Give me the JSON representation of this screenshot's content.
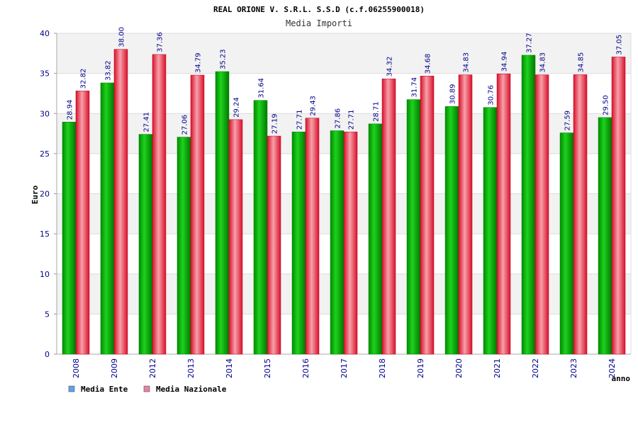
{
  "chart_data": {
    "type": "bar",
    "title": "REAL ORIONE V. S.R.L. S.S.D (c.f.06255900018)",
    "subtitle": "Media Importi",
    "xlabel": "anno",
    "ylabel": "Euro",
    "ylim": [
      0,
      40
    ],
    "yticks": [
      "0",
      "5",
      "10",
      "15",
      "20",
      "25",
      "30",
      "35",
      "40"
    ],
    "grid": true,
    "legend_position": "bottom-left",
    "categories": [
      "2008",
      "2009",
      "2012",
      "2013",
      "2014",
      "2015",
      "2016",
      "2017",
      "2018",
      "2019",
      "2020",
      "2021",
      "2022",
      "2023",
      "2024"
    ],
    "series": [
      {
        "name": "Media Ente",
        "color": "#00b000",
        "values": [
          28.94,
          33.82,
          27.41,
          27.06,
          35.23,
          31.64,
          27.71,
          27.86,
          28.71,
          31.74,
          30.89,
          30.76,
          37.27,
          27.59,
          29.5
        ],
        "labels": [
          "28.94",
          "33.82",
          "27.41",
          "27.06",
          "35.23",
          "31.64",
          "27.71",
          "27.86",
          "28.71",
          "31.74",
          "30.89",
          "30.76",
          "37.27",
          "27.59",
          "29.50"
        ]
      },
      {
        "name": "Media Nazionale",
        "color": "#e8203a",
        "values": [
          32.82,
          38.0,
          37.36,
          34.79,
          29.24,
          27.19,
          29.43,
          27.71,
          34.32,
          34.68,
          34.83,
          34.94,
          34.83,
          34.85,
          37.05
        ],
        "labels": [
          "32.82",
          "38.00",
          "37.36",
          "34.79",
          "29.24",
          "27.19",
          "29.43",
          "27.71",
          "34.32",
          "34.68",
          "34.83",
          "34.94",
          "34.83",
          "34.85",
          "37.05"
        ]
      }
    ],
    "legend_colors": [
      "#5fa0e8",
      "#e880a8"
    ]
  }
}
